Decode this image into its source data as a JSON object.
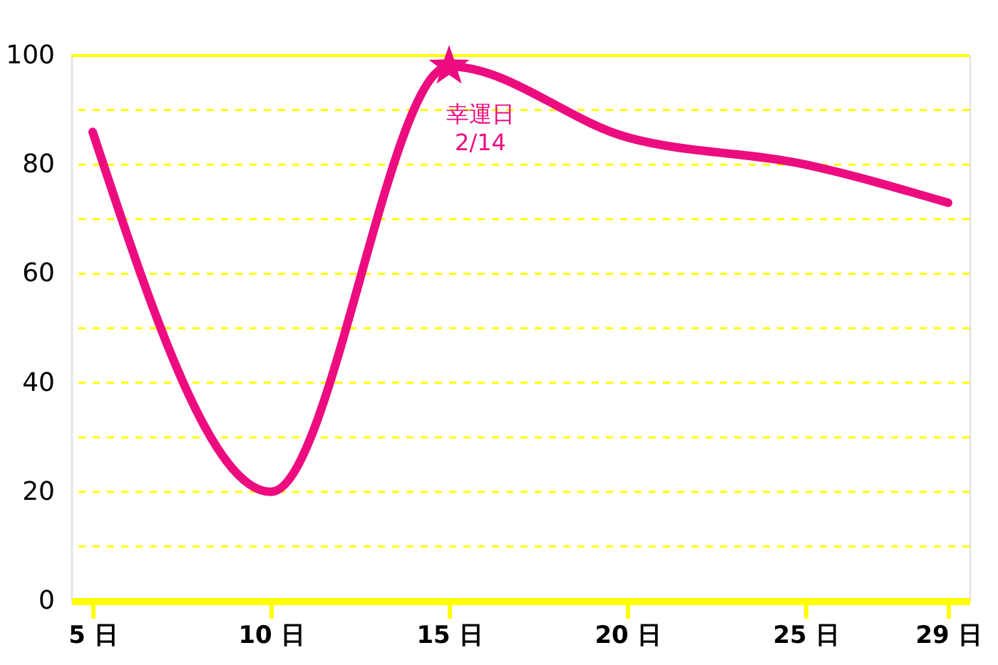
{
  "chart_data": {
    "type": "line",
    "x": [
      5,
      10,
      15,
      20,
      25,
      29
    ],
    "series": [
      {
        "color": "#ec0c80",
        "values": [
          86,
          20,
          98,
          85,
          80,
          73
        ]
      }
    ],
    "xlim": [
      4.4,
      29.6
    ],
    "xticks": [
      {
        "value": 5,
        "label": "5 日"
      },
      {
        "value": 10,
        "label": "10 日"
      },
      {
        "value": 15,
        "label": "15 日"
      },
      {
        "value": 20,
        "label": "20 日"
      },
      {
        "value": 25,
        "label": "25 日"
      },
      {
        "value": 29,
        "label": "29 日"
      }
    ],
    "ylim": [
      0,
      100
    ],
    "yticks": [
      0,
      {
        "value": 10,
        "label": null
      },
      20,
      {
        "value": 30,
        "label": null
      },
      40,
      {
        "value": 50,
        "label": null
      },
      60,
      {
        "value": 70,
        "label": null
      },
      80,
      {
        "value": 90,
        "label": null
      },
      100
    ],
    "grid": "y",
    "line_style": "solid",
    "annotations": [
      {
        "text": "幸運日\n2/14",
        "x": 15,
        "y": 98
      }
    ]
  }
}
